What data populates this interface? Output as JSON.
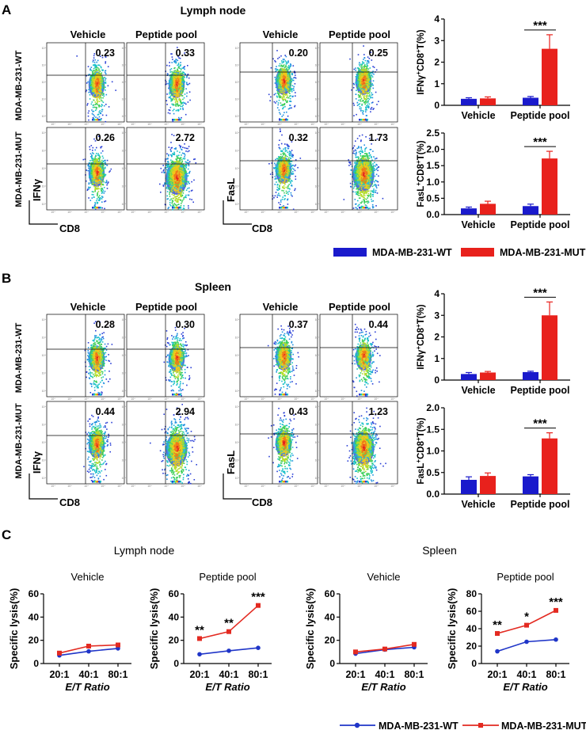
{
  "panels": {
    "A": {
      "letter": "A",
      "title": "Lymph node",
      "flow_cols": [
        "Vehicle",
        "Peptide pool",
        "Vehicle",
        "Peptide pool"
      ],
      "rows": [
        "MDA-MB-231-WT",
        "MDA-MB-231-MUT"
      ],
      "values": {
        "ifng_wt": [
          "0.23",
          "0.33"
        ],
        "ifng_mut": [
          "0.26",
          "2.72"
        ],
        "fasl_wt": [
          "0.20",
          "0.25"
        ],
        "fasl_mut": [
          "0.32",
          "1.73"
        ]
      },
      "axis_ifng": "IFNγ",
      "axis_fasl": "FasL",
      "axis_cd8": "CD8"
    },
    "B": {
      "letter": "B",
      "title": "Spleen",
      "flow_cols": [
        "Vehicle",
        "Peptide pool",
        "Vehicle",
        "Peptide pool"
      ],
      "rows": [
        "MDA-MB-231-WT",
        "MDA-MB-231-MUT"
      ],
      "values": {
        "ifng_wt": [
          "0.28",
          "0.30"
        ],
        "ifng_mut": [
          "0.44",
          "2.94"
        ],
        "fasl_wt": [
          "0.37",
          "0.44"
        ],
        "fasl_mut": [
          "0.43",
          "1.23"
        ]
      },
      "axis_ifng": "IFNγ",
      "axis_fasl": "FasL",
      "axis_cd8": "CD8"
    },
    "C": {
      "letter": "C",
      "title_lymph": "Lymph node",
      "title_spleen": "Spleen"
    }
  },
  "flow_tick_text": "10⁴",
  "legend_bar": {
    "wt": "MDA-MB-231-WT",
    "mut": "MDA-MB-231-MUT"
  },
  "legend_line": {
    "wt": "MDA-MB-231-WT",
    "mut": "MDA-MB-231-MUT"
  },
  "colors": {
    "wt": "#1a1acc",
    "mut": "#e8211c",
    "line_wt": "#1f35c8",
    "line_mut": "#e32a21"
  },
  "chart_data": [
    {
      "id": "A_ifng",
      "type": "bar",
      "categories": [
        "Vehicle",
        "Peptide pool"
      ],
      "series": [
        {
          "name": "MDA-MB-231-WT",
          "values": [
            0.3,
            0.35
          ],
          "errors": [
            0.05,
            0.06
          ]
        },
        {
          "name": "MDA-MB-231-MUT",
          "values": [
            0.32,
            2.62
          ],
          "errors": [
            0.07,
            0.65
          ]
        }
      ],
      "ylabel": "IFNγ+CD8+T(%)",
      "ylabel_main": "IFNγ",
      "ylabel_sup": "+",
      "ylabel_mid": "CD8",
      "ylabel_sup2": "+",
      "ylabel_end": "T(%)",
      "ylim": [
        0,
        4
      ],
      "yticks": [
        "0",
        "1",
        "2",
        "3",
        "4"
      ],
      "significance": "***"
    },
    {
      "id": "A_fasl",
      "type": "bar",
      "categories": [
        "Vehicle",
        "Peptide pool"
      ],
      "series": [
        {
          "name": "MDA-MB-231-WT",
          "values": [
            0.19,
            0.26
          ],
          "errors": [
            0.04,
            0.06
          ]
        },
        {
          "name": "MDA-MB-231-MUT",
          "values": [
            0.33,
            1.72
          ],
          "errors": [
            0.08,
            0.22
          ]
        }
      ],
      "ylabel": "FasL+CD8+T(%)",
      "ylabel_main": "FasL",
      "ylabel_sup": "+",
      "ylabel_mid": "CD8",
      "ylabel_sup2": "+",
      "ylabel_end": "T(%)",
      "ylim": [
        0,
        2.5
      ],
      "yticks": [
        "0.0",
        "0.5",
        "1.0",
        "1.5",
        "2.0",
        "2.5"
      ],
      "significance": "***"
    },
    {
      "id": "B_ifng",
      "type": "bar",
      "categories": [
        "Vehicle",
        "Peptide pool"
      ],
      "series": [
        {
          "name": "MDA-MB-231-WT",
          "values": [
            0.28,
            0.37
          ],
          "errors": [
            0.07,
            0.04
          ]
        },
        {
          "name": "MDA-MB-231-MUT",
          "values": [
            0.35,
            3.0
          ],
          "errors": [
            0.05,
            0.62
          ]
        }
      ],
      "ylabel": "IFNγ+CD8+T(%)",
      "ylabel_main": "IFNγ",
      "ylabel_sup": "+",
      "ylabel_mid": "CD8",
      "ylabel_sup2": "+",
      "ylabel_end": "T(%)",
      "ylim": [
        0,
        4
      ],
      "yticks": [
        "0",
        "1",
        "2",
        "3",
        "4"
      ],
      "significance": "***"
    },
    {
      "id": "B_fasl",
      "type": "bar",
      "categories": [
        "Vehicle",
        "Peptide pool"
      ],
      "series": [
        {
          "name": "MDA-MB-231-WT",
          "values": [
            0.33,
            0.41
          ],
          "errors": [
            0.07,
            0.04
          ]
        },
        {
          "name": "MDA-MB-231-MUT",
          "values": [
            0.42,
            1.29
          ],
          "errors": [
            0.07,
            0.13
          ]
        }
      ],
      "ylabel": "FasL+CD8+T(%)",
      "ylabel_main": "FasL",
      "ylabel_sup": "+",
      "ylabel_mid": "CD8",
      "ylabel_sup2": "+",
      "ylabel_end": "T(%)",
      "ylim": [
        0,
        2.0
      ],
      "yticks": [
        "0.0",
        "0.5",
        "1.0",
        "1.5",
        "2.0"
      ],
      "significance": "***"
    },
    {
      "id": "C_lymph_vehicle",
      "type": "line",
      "title": "Vehicle",
      "x": [
        "20:1",
        "40:1",
        "80:1"
      ],
      "series": [
        {
          "name": "MDA-MB-231-WT",
          "values": [
            7,
            10.5,
            13
          ]
        },
        {
          "name": "MDA-MB-231-MUT",
          "values": [
            9,
            15,
            16
          ]
        }
      ],
      "xlabel": "E/T Ratio",
      "ylabel": "Specific lysis(%)",
      "ylim": [
        0,
        60
      ],
      "yticks": [
        "0",
        "20",
        "40",
        "60"
      ],
      "significance": [
        "",
        "",
        ""
      ]
    },
    {
      "id": "C_lymph_peptide",
      "type": "line",
      "title": "Peptide pool",
      "x": [
        "20:1",
        "40:1",
        "80:1"
      ],
      "series": [
        {
          "name": "MDA-MB-231-WT",
          "values": [
            8,
            11,
            13.5
          ]
        },
        {
          "name": "MDA-MB-231-MUT",
          "values": [
            21.5,
            27.5,
            50
          ]
        }
      ],
      "xlabel": "E/T Ratio",
      "ylabel": "Specific lysis(%)",
      "ylim": [
        0,
        60
      ],
      "yticks": [
        "0",
        "20",
        "40",
        "60"
      ],
      "significance": [
        "**",
        "**",
        "***"
      ]
    },
    {
      "id": "C_spleen_vehicle",
      "type": "line",
      "title": "Vehicle",
      "x": [
        "20:1",
        "40:1",
        "80:1"
      ],
      "series": [
        {
          "name": "MDA-MB-231-WT",
          "values": [
            8.5,
            12,
            14
          ]
        },
        {
          "name": "MDA-MB-231-MUT",
          "values": [
            10,
            12.5,
            16.5
          ]
        }
      ],
      "xlabel": "E/T Ratio",
      "ylabel": "Specific lysis(%)",
      "ylim": [
        0,
        60
      ],
      "yticks": [
        "0",
        "20",
        "40",
        "60"
      ],
      "significance": [
        "",
        "",
        ""
      ]
    },
    {
      "id": "C_spleen_peptide",
      "type": "line",
      "title": "Peptide pool",
      "x": [
        "20:1",
        "40:1",
        "80:1"
      ],
      "series": [
        {
          "name": "MDA-MB-231-WT",
          "values": [
            14,
            25,
            27.5
          ]
        },
        {
          "name": "MDA-MB-231-MUT",
          "values": [
            34.5,
            44,
            61
          ]
        }
      ],
      "xlabel": "E/T Ratio",
      "ylabel": "Specific lysis(%)",
      "ylim": [
        0,
        80
      ],
      "yticks": [
        "0",
        "20",
        "40",
        "60",
        "80"
      ],
      "significance": [
        "**",
        "*",
        "***"
      ]
    }
  ]
}
